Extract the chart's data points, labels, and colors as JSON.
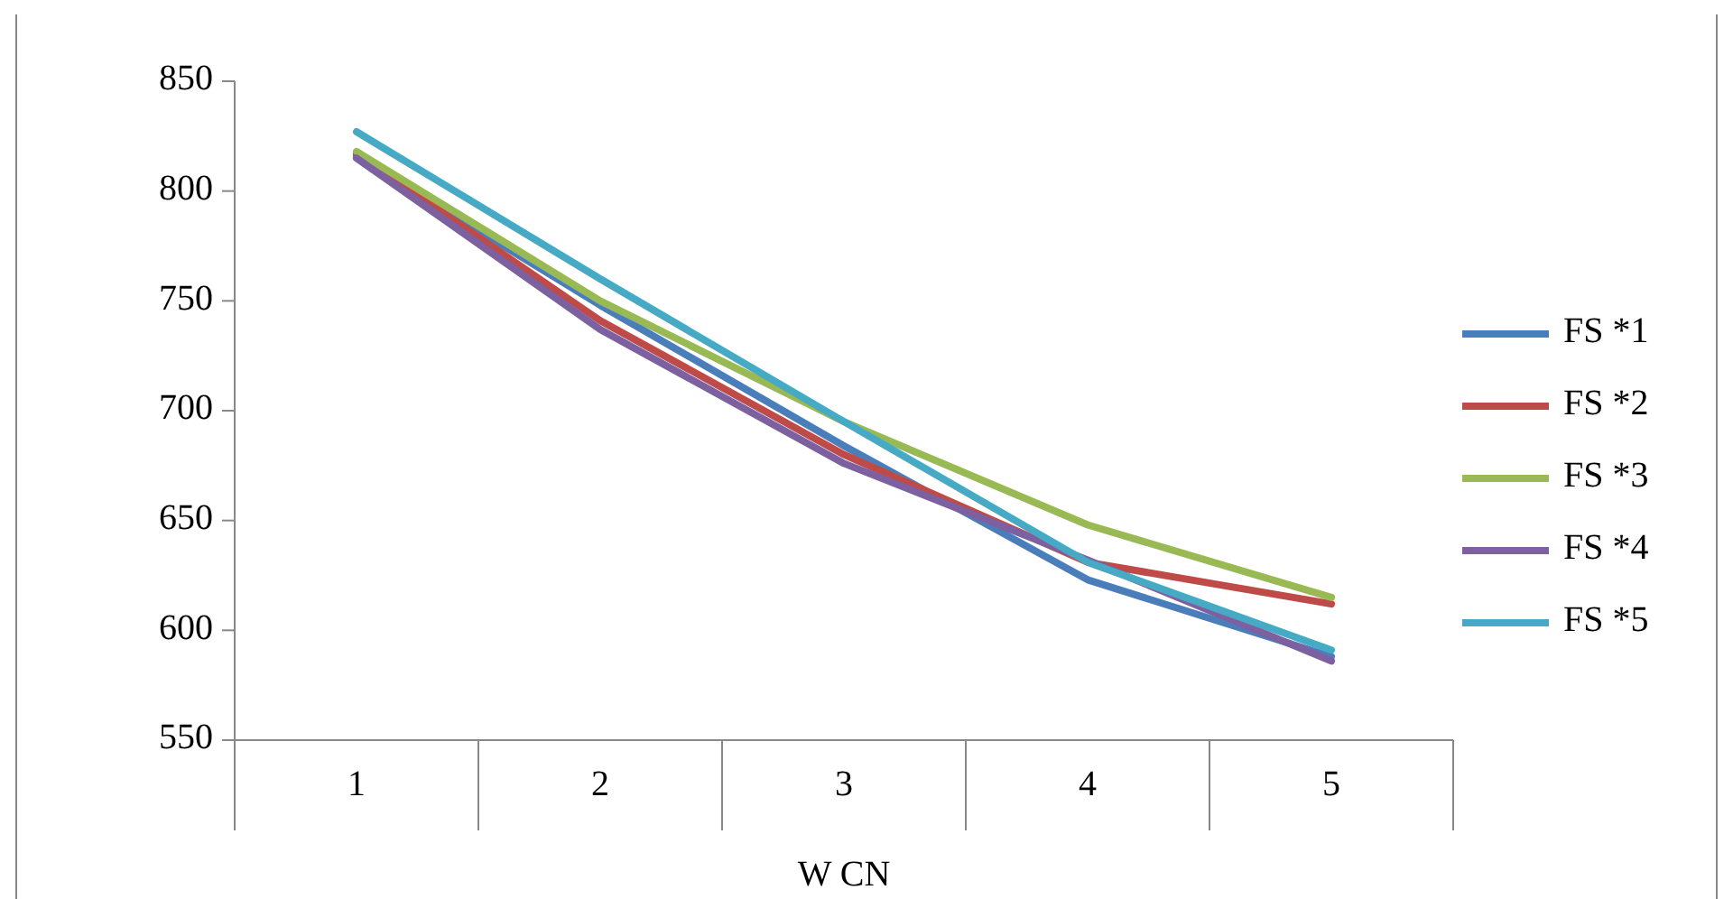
{
  "chart_data": {
    "type": "line",
    "xlabel": "W  CN",
    "categories": [
      "1",
      "2",
      "3",
      "4",
      "5"
    ],
    "ylim": [
      550,
      850
    ],
    "yticks": [
      550,
      600,
      650,
      700,
      750,
      800,
      850
    ],
    "grid": false,
    "legend": "right",
    "marker": "none",
    "series": [
      {
        "name": "FS *1",
        "color": "#4a7ebb",
        "values": [
          816,
          748,
          684,
          623,
          588
        ]
      },
      {
        "name": "FS *2",
        "color": "#be4b48",
        "values": [
          817,
          741,
          680,
          631,
          612
        ]
      },
      {
        "name": "FS *3",
        "color": "#98b954",
        "values": [
          818,
          750,
          695,
          648,
          615
        ]
      },
      {
        "name": "FS *4",
        "color": "#7d60a0",
        "values": [
          815,
          737,
          676,
          632,
          586
        ]
      },
      {
        "name": "FS *5",
        "color": "#46aac5",
        "values": [
          827,
          760,
          695,
          631,
          591
        ]
      }
    ]
  }
}
